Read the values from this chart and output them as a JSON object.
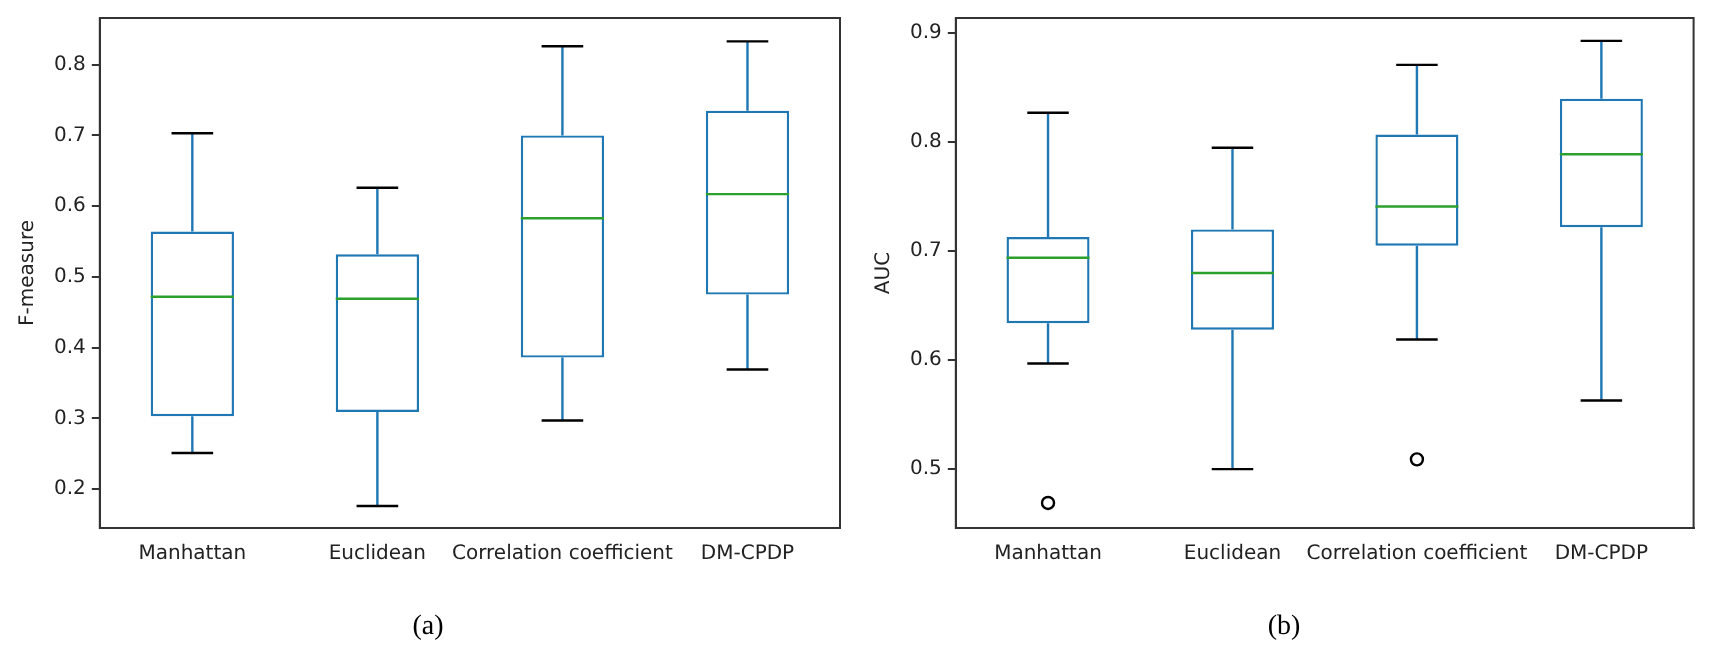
{
  "chart_data": [
    {
      "type": "box",
      "ylabel": "F-measure",
      "categories": [
        "Manhattan",
        "Euclidean",
        "Correlation coefficient",
        "DM-CPDP"
      ],
      "ylim": [
        0.145,
        0.866
      ],
      "yticks": [
        0.2,
        0.3,
        0.4,
        0.5,
        0.6,
        0.7,
        0.8
      ],
      "grid": false,
      "legend": false,
      "annotations": [
        "(a)"
      ],
      "series": [
        {
          "color": "#1f77b4",
          "boxes": [
            {
              "low": 0.251,
              "q1": 0.303,
              "median": 0.472,
              "q3": 0.564,
              "high": 0.703
            },
            {
              "low": 0.176,
              "q1": 0.309,
              "median": 0.469,
              "q3": 0.532,
              "high": 0.626
            },
            {
              "low": 0.297,
              "q1": 0.386,
              "median": 0.583,
              "q3": 0.7,
              "high": 0.826
            },
            {
              "low": 0.369,
              "q1": 0.475,
              "median": 0.617,
              "q3": 0.735,
              "high": 0.833
            }
          ]
        }
      ]
    },
    {
      "type": "box",
      "ylabel": "AUC",
      "categories": [
        "Manhattan",
        "Euclidean",
        "Correlation coefficient",
        "DM-CPDP"
      ],
      "ylim": [
        0.446,
        0.914
      ],
      "yticks": [
        0.5,
        0.6,
        0.7,
        0.8,
        0.9
      ],
      "grid": false,
      "legend": false,
      "annotations": [
        "(b)"
      ],
      "series": [
        {
          "color": "#1f77b4",
          "boxes": [
            {
              "low": 0.597,
              "q1": 0.634,
              "median": 0.694,
              "q3": 0.713,
              "high": 0.827,
              "outliers": [
                0.469
              ]
            },
            {
              "low": 0.5,
              "q1": 0.628,
              "median": 0.68,
              "q3": 0.72,
              "high": 0.795
            },
            {
              "low": 0.619,
              "q1": 0.705,
              "median": 0.741,
              "q3": 0.807,
              "high": 0.871,
              "outliers": [
                0.509
              ]
            },
            {
              "low": 0.563,
              "q1": 0.722,
              "median": 0.789,
              "q3": 0.84,
              "high": 0.893
            }
          ]
        }
      ]
    }
  ]
}
